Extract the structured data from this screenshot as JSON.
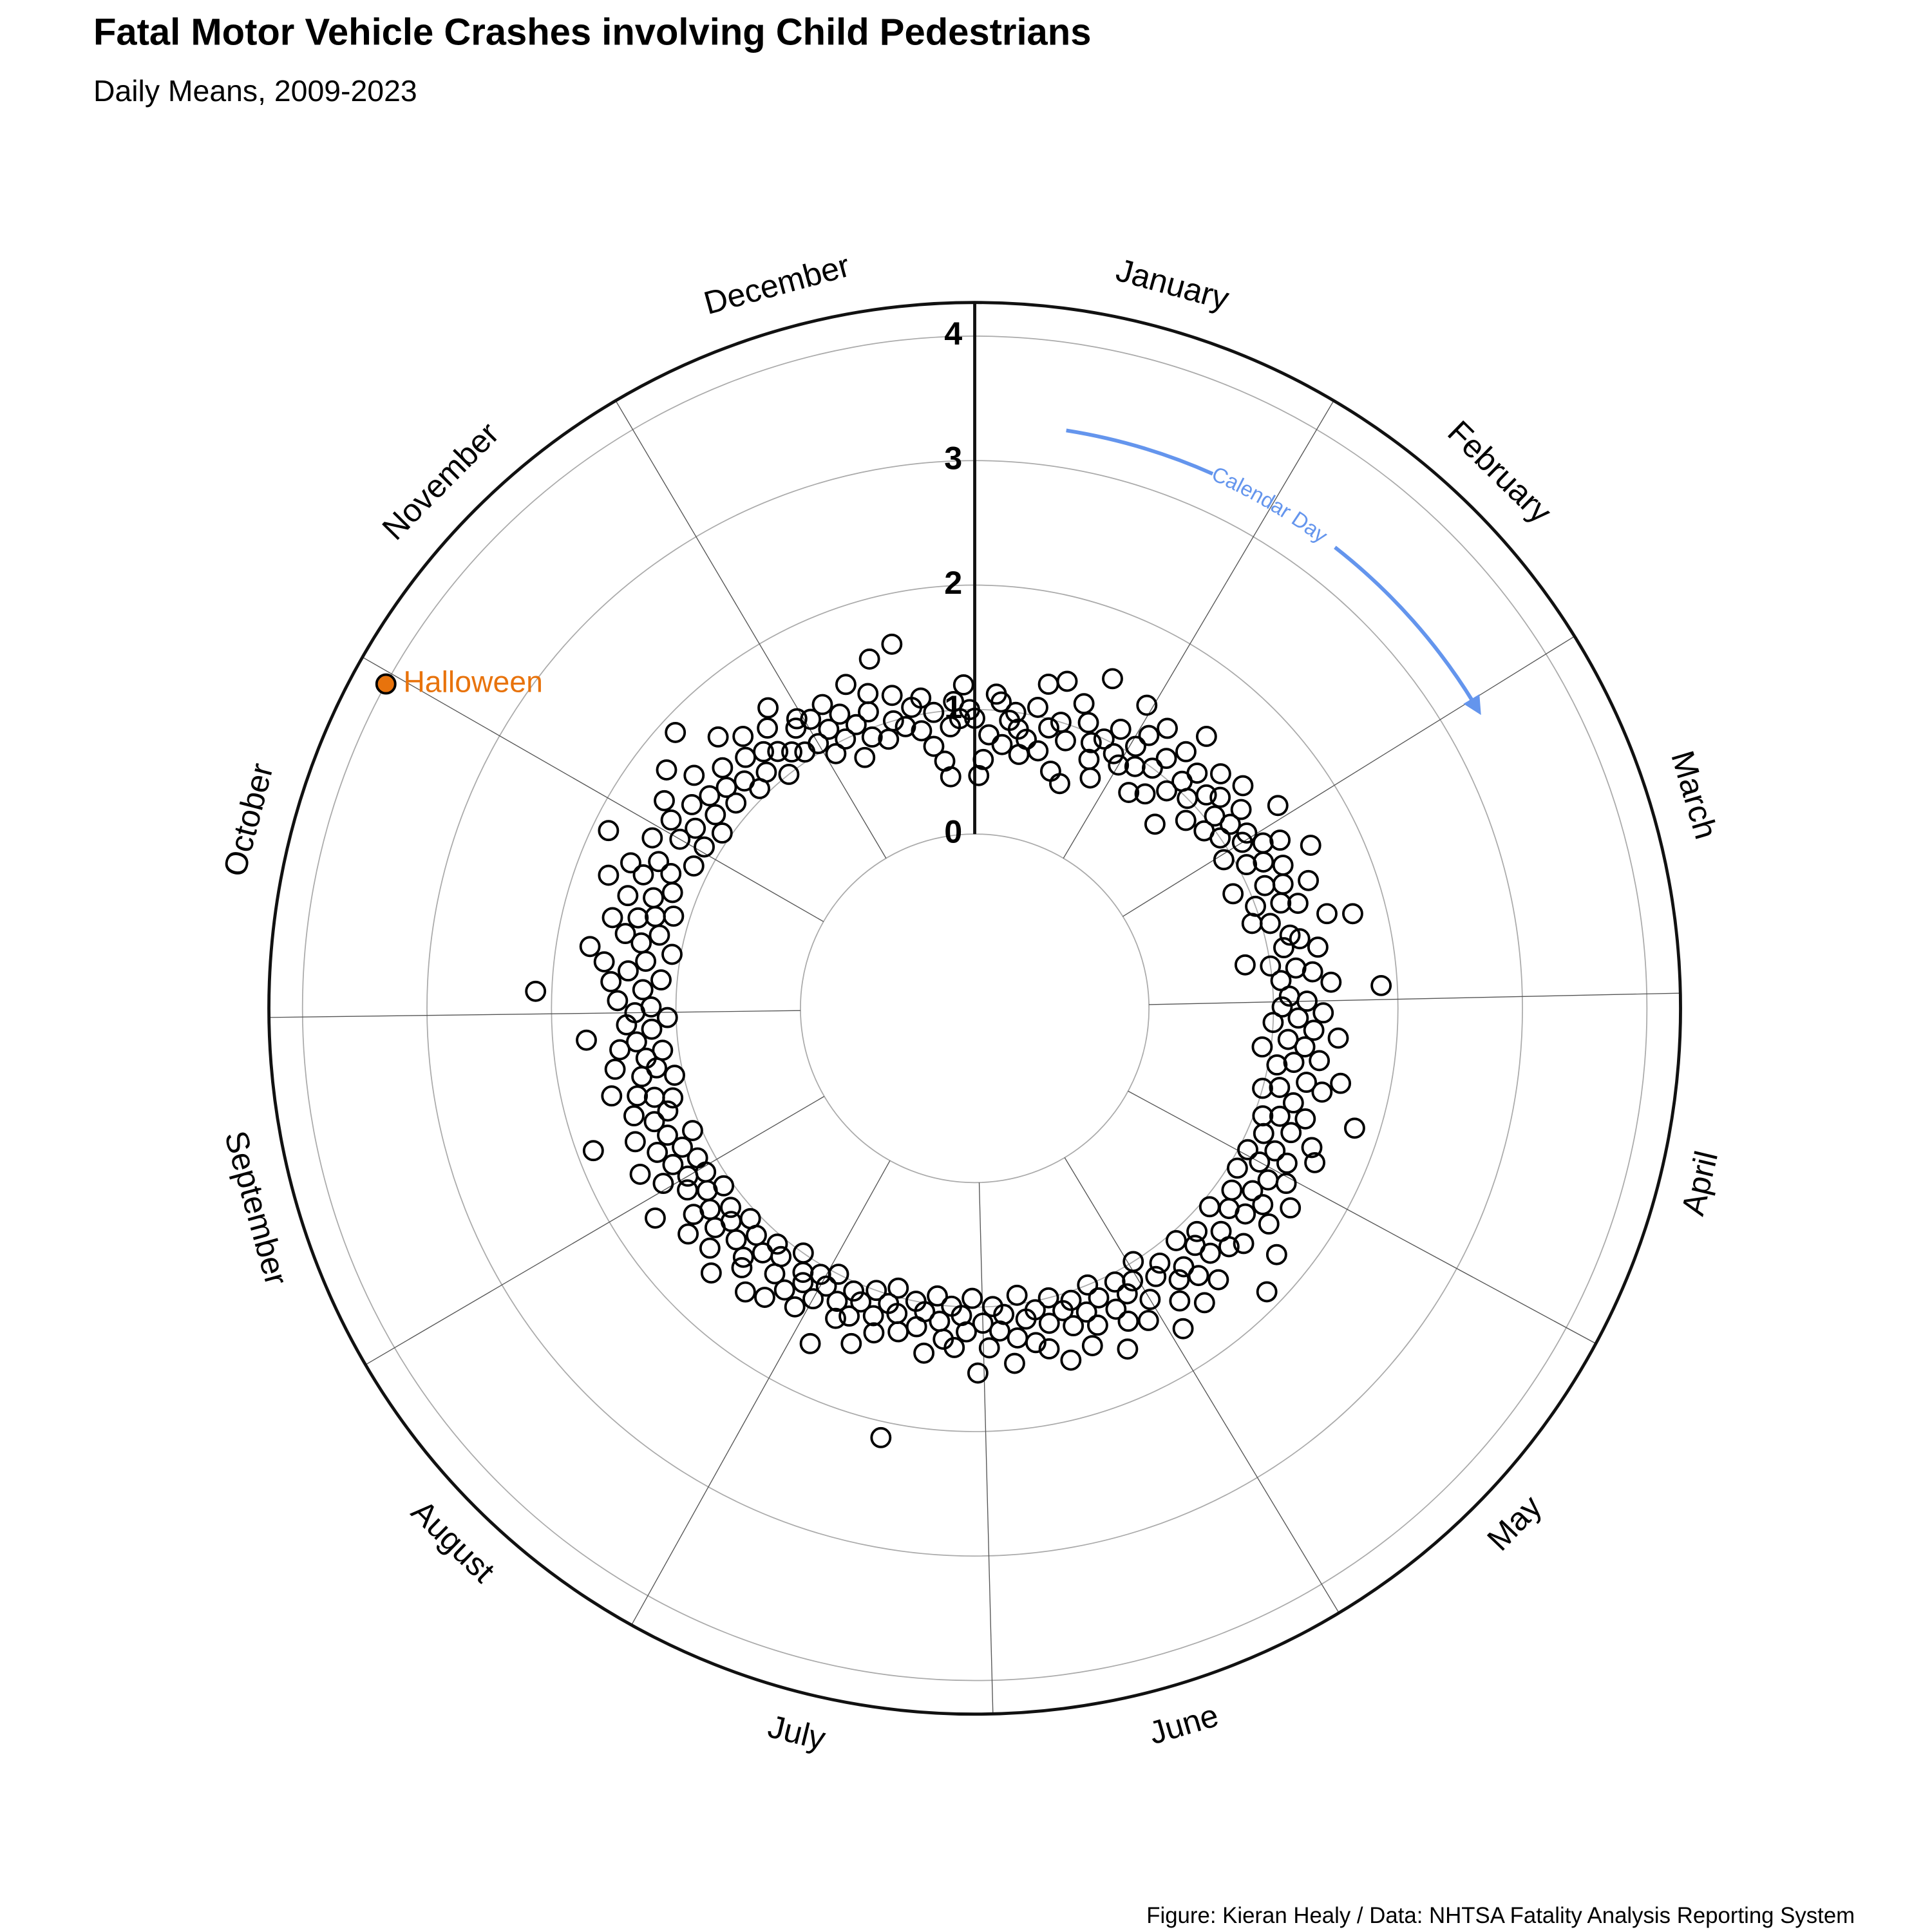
{
  "chart_data": {
    "type": "polar-scatter",
    "title": "Fatal Motor Vehicle Crashes involving Child Pedestrians",
    "subtitle": "Daily Means, 2009-2023",
    "caption": "Figure: Kieran Healy / Data: NHTSA Fatality Analysis Reporting System",
    "x_label": "Calendar Day",
    "categories": [
      "January",
      "February",
      "March",
      "April",
      "May",
      "June",
      "July",
      "August",
      "September",
      "October",
      "November",
      "December"
    ],
    "xlim": [
      1,
      366
    ],
    "xticks": [
      1,
      32,
      60,
      91,
      121,
      152,
      182,
      213,
      244,
      274,
      305,
      335
    ],
    "ylim": [
      0,
      4.27
    ],
    "yticks": [
      0,
      1,
      2,
      3,
      4
    ],
    "grid": true,
    "color": "#000000",
    "arrow_color": "#6495ed",
    "annotations": [
      {
        "x": 304,
        "text": "Halloween",
        "color": "#e8730c"
      }
    ],
    "x": [
      1,
      2,
      3,
      4,
      5,
      6,
      7,
      8,
      9,
      10,
      11,
      12,
      13,
      14,
      15,
      16,
      17,
      18,
      19,
      20,
      21,
      22,
      23,
      24,
      25,
      26,
      27,
      28,
      29,
      30,
      31,
      32,
      33,
      34,
      35,
      36,
      37,
      38,
      39,
      40,
      41,
      42,
      43,
      44,
      45,
      46,
      47,
      48,
      49,
      50,
      51,
      52,
      53,
      54,
      55,
      56,
      57,
      58,
      59,
      60,
      61,
      62,
      63,
      64,
      65,
      66,
      67,
      68,
      69,
      70,
      71,
      72,
      73,
      74,
      75,
      76,
      77,
      78,
      79,
      80,
      81,
      82,
      83,
      84,
      85,
      86,
      87,
      88,
      89,
      90,
      91,
      92,
      93,
      94,
      95,
      96,
      97,
      98,
      99,
      100,
      101,
      102,
      103,
      104,
      105,
      106,
      107,
      108,
      109,
      110,
      111,
      112,
      113,
      114,
      115,
      116,
      117,
      118,
      119,
      120,
      121,
      122,
      123,
      124,
      125,
      126,
      127,
      128,
      129,
      130,
      131,
      132,
      133,
      134,
      135,
      136,
      137,
      138,
      139,
      140,
      141,
      142,
      143,
      144,
      145,
      146,
      147,
      148,
      149,
      150,
      151,
      152,
      153,
      154,
      155,
      156,
      157,
      158,
      159,
      160,
      161,
      162,
      163,
      164,
      165,
      166,
      167,
      168,
      169,
      170,
      171,
      172,
      173,
      174,
      175,
      176,
      177,
      178,
      179,
      180,
      181,
      182,
      183,
      184,
      185,
      186,
      187,
      188,
      189,
      190,
      191,
      192,
      193,
      194,
      195,
      196,
      197,
      198,
      199,
      200,
      201,
      202,
      203,
      204,
      205,
      206,
      207,
      208,
      209,
      210,
      211,
      212,
      213,
      214,
      215,
      216,
      217,
      218,
      219,
      220,
      221,
      222,
      223,
      224,
      225,
      226,
      227,
      228,
      229,
      230,
      231,
      232,
      233,
      234,
      235,
      236,
      237,
      238,
      239,
      240,
      241,
      242,
      243,
      244,
      245,
      246,
      247,
      248,
      249,
      250,
      251,
      252,
      253,
      254,
      255,
      256,
      257,
      258,
      259,
      260,
      261,
      262,
      263,
      264,
      265,
      266,
      267,
      268,
      269,
      270,
      271,
      272,
      273,
      274,
      275,
      276,
      277,
      278,
      279,
      280,
      281,
      282,
      283,
      284,
      285,
      286,
      287,
      288,
      289,
      290,
      291,
      292,
      293,
      294,
      295,
      296,
      297,
      298,
      299,
      300,
      301,
      302,
      303,
      304,
      305,
      306,
      307,
      308,
      309,
      310,
      311,
      312,
      313,
      314,
      315,
      316,
      317,
      318,
      319,
      320,
      321,
      322,
      323,
      324,
      325,
      326,
      327,
      328,
      329,
      330,
      331,
      332,
      333,
      334,
      335,
      336,
      337,
      338,
      339,
      340,
      341,
      342,
      343,
      344,
      345,
      346,
      347,
      348,
      349,
      350,
      351,
      352,
      353,
      354,
      355,
      356,
      357,
      358,
      359,
      360,
      361,
      362,
      363,
      364,
      365
    ],
    "values": [
      0.93,
      0.47,
      0.6,
      0.8,
      1.13,
      1.07,
      0.73,
      0.93,
      1.0,
      0.87,
      0.67,
      0.8,
      1.07,
      1.27,
      0.73,
      0.93,
      1.33,
      1.0,
      0.6,
      0.87,
      1.2,
      0.53,
      1.07,
      1.47,
      0.93,
      0.8,
      1.0,
      0.67,
      1.13,
      0.93,
      1.4,
      0.87,
      1.07,
      1.2,
      0.93,
      1.33,
      0.73,
      1.0,
      1.13,
      0.8,
      1.27,
      1.47,
      0.93,
      1.07,
      1.2,
      0.67,
      1.0,
      1.33,
      1.13,
      0.87,
      1.2,
      1.4,
      1.07,
      0.93,
      1.27,
      1.13,
      1.0,
      1.53,
      1.2,
      1.13,
      0.93,
      1.27,
      1.4,
      1.07,
      1.2,
      1.6,
      1.33,
      0.87,
      1.13,
      1.27,
      1.47,
      1.0,
      1.2,
      1.33,
      0.93,
      1.07,
      1.53,
      1.73,
      1.2,
      1.27,
      1.13,
      1.4,
      0.8,
      1.0,
      1.2,
      1.33,
      1.07,
      1.47,
      1.87,
      1.13,
      1.27,
      1.07,
      1.4,
      1.2,
      1.0,
      1.33,
      1.53,
      1.13,
      1.27,
      0.93,
      1.4,
      1.2,
      1.07,
      1.6,
      1.33,
      1.47,
      1.13,
      1.0,
      1.27,
      1.8,
      1.4,
      1.2,
      1.07,
      1.33,
      1.53,
      1.13,
      1.6,
      1.27,
      1.4,
      1.07,
      1.2,
      1.47,
      1.33,
      1.07,
      1.6,
      1.27,
      1.4,
      1.13,
      1.53,
      1.33,
      1.2,
      1.73,
      1.07,
      1.47,
      1.27,
      1.4,
      1.87,
      1.13,
      1.33,
      1.2,
      1.53,
      1.07,
      1.4,
      1.27,
      1.6,
      1.33,
      1.13,
      1.47,
      1.2,
      1.67,
      1.0,
      1.33,
      1.13,
      1.47,
      1.2,
      1.07,
      1.4,
      1.27,
      1.6,
      1.13,
      1.0,
      1.33,
      1.2,
      1.47,
      1.07,
      1.27,
      1.13,
      1.53,
      1.0,
      1.2,
      1.4,
      1.07,
      1.33,
      1.13,
      0.93,
      1.27,
      1.47,
      1.07,
      1.2,
      1.0,
      1.33,
      1.13,
      1.53,
      0.93,
      1.2,
      1.07,
      1.33,
      1.0,
      1.27,
      1.13,
      0.93,
      1.4,
      1.07,
      1.2,
      1.0,
      2.13,
      1.27,
      1.13,
      0.93,
      1.07,
      1.33,
      1.2,
      1.0,
      1.47,
      1.13,
      1.27,
      1.07,
      1.33,
      1.2,
      1.6,
      1.0,
      1.13,
      1.27,
      1.07,
      1.4,
      1.2,
      1.13,
      1.33,
      1.0,
      1.47,
      1.27,
      1.13,
      1.53,
      1.07,
      1.2,
      1.4,
      1.33,
      1.13,
      1.6,
      1.27,
      1.07,
      1.47,
      1.2,
      1.33,
      1.13,
      1.53,
      1.27,
      1.4,
      1.07,
      1.2,
      1.67,
      1.33,
      1.13,
      1.27,
      1.47,
      1.13,
      1.33,
      1.6,
      1.2,
      1.4,
      1.07,
      1.27,
      1.53,
      1.87,
      1.33,
      1.2,
      1.47,
      1.13,
      1.27,
      1.4,
      1.6,
      1.07,
      1.33,
      1.2,
      1.53,
      1.27,
      1.13,
      1.47,
      1.33,
      1.73,
      1.2,
      1.4,
      1.07,
      1.33,
      1.2,
      1.47,
      2.13,
      1.27,
      1.53,
      1.13,
      1.4,
      1.6,
      1.27,
      1.73,
      1.07,
      1.33,
      1.47,
      1.2,
      1.6,
      1.4,
      1.27,
      1.13,
      1.53,
      1.33,
      1.73,
      1.2,
      1.47,
      1.6,
      1.27,
      1.4,
      1.87,
      1.13,
      1.53,
      4.0,
      1.33,
      1.13,
      1.47,
      1.27,
      1.6,
      1.07,
      1.4,
      1.2,
      1.73,
      1.33,
      1.53,
      1.13,
      1.27,
      1.87,
      1.4,
      1.2,
      1.07,
      1.6,
      1.33,
      1.13,
      1.47,
      1.27,
      1.0,
      1.2,
      1.4,
      1.13,
      1.53,
      1.07,
      1.27,
      1.33,
      1.07,
      1.27,
      0.93,
      1.13,
      1.33,
      1.0,
      1.2,
      0.8,
      1.07,
      1.4,
      0.93,
      1.13,
      1.27,
      0.87,
      1.53,
      1.0,
      1.2,
      0.93,
      1.6,
      1.07,
      0.87,
      1.13,
      0.73,
      1.0,
      0.6,
      0.47,
      0.87,
      1.07,
      0.93,
      1.2,
      1.0
    ]
  }
}
